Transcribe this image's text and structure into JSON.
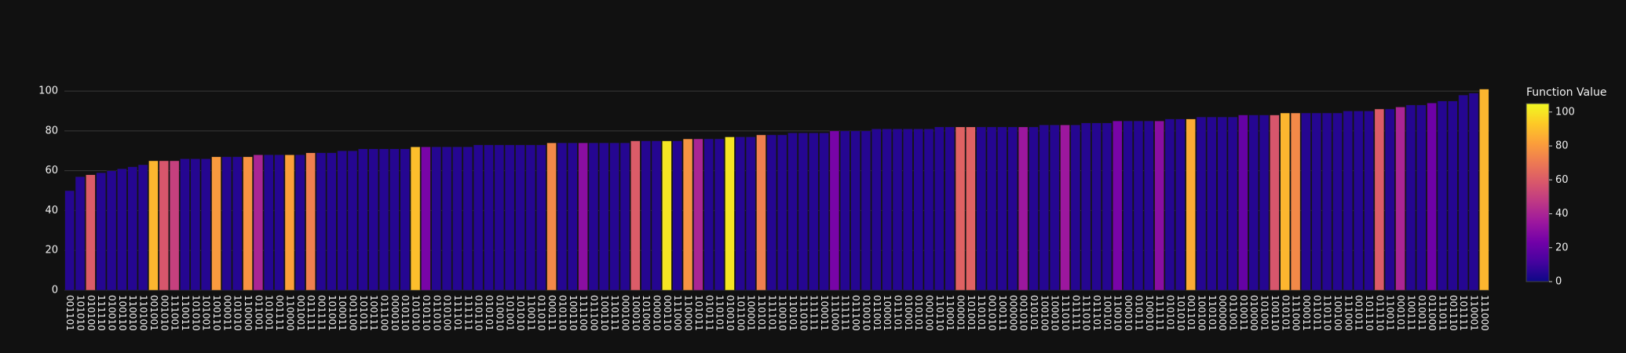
{
  "chart_data": {
    "type": "bar",
    "categories": [
      "001101",
      "101010",
      "010100",
      "111110",
      "010010",
      "100110",
      "110010",
      "110100",
      "001001",
      "001010",
      "111001",
      "110011",
      "101010",
      "101001",
      "100110",
      "000011",
      "101010",
      "110000",
      "011001",
      "101001",
      "001111",
      "110000",
      "001001",
      "011111",
      "001111",
      "101001",
      "100011",
      "001100",
      "101011",
      "100111",
      "011100",
      "000010",
      "010110",
      "101010",
      "010110",
      "011010",
      "010100",
      "111101",
      "111111",
      "010110",
      "010101",
      "010010",
      "101001",
      "101010",
      "110011",
      "011010",
      "000111",
      "010110",
      "100110",
      "111100",
      "011100",
      "100110",
      "110111",
      "000100",
      "100010",
      "101000",
      "000010",
      "000110",
      "111000",
      "110000",
      "101011",
      "010111",
      "110101",
      "010010",
      "101100",
      "100001",
      "110101",
      "111101",
      "110010",
      "110101",
      "111010",
      "111111",
      "100011",
      "111000",
      "111111",
      "011100",
      "010010",
      "011001",
      "100001",
      "011101",
      "010001",
      "010101",
      "000100",
      "110110",
      "110001",
      "000001",
      "101001",
      "110101",
      "001010",
      "100111",
      "000000",
      "001010",
      "010101",
      "100100",
      "100010",
      "111010",
      "011111",
      "111010",
      "011101",
      "100101",
      "110010",
      "000010",
      "010111",
      "100010",
      "111111",
      "010101",
      "101010",
      "001101",
      "100100",
      "110101",
      "000000",
      "011001",
      "010011",
      "010000",
      "101001",
      "100110",
      "010101",
      "111000",
      "000011",
      "011011",
      "110110",
      "100100",
      "111000",
      "001011",
      "101110",
      "011110",
      "110011",
      "000101",
      "100111",
      "010011",
      "011000",
      "111011",
      "001110",
      "101111",
      "110001",
      "111000"
    ],
    "values": [
      50,
      57,
      58,
      59,
      60,
      61,
      62,
      63,
      65,
      65,
      65,
      66,
      66,
      66,
      67,
      67,
      67,
      67,
      68,
      68,
      68,
      68,
      68,
      69,
      69,
      69,
      70,
      70,
      71,
      71,
      71,
      71,
      71,
      72,
      72,
      72,
      72,
      72,
      72,
      73,
      73,
      73,
      73,
      73,
      73,
      73,
      74,
      74,
      74,
      74,
      74,
      74,
      74,
      74,
      75,
      75,
      75,
      75,
      75,
      76,
      76,
      76,
      76,
      77,
      77,
      77,
      78,
      78,
      78,
      79,
      79,
      79,
      79,
      80,
      80,
      80,
      80,
      81,
      81,
      81,
      81,
      81,
      81,
      82,
      82,
      82,
      82,
      82,
      82,
      82,
      82,
      82,
      82,
      83,
      83,
      83,
      83,
      84,
      84,
      84,
      85,
      85,
      85,
      85,
      85,
      86,
      86,
      86,
      87,
      87,
      87,
      87,
      88,
      88,
      88,
      88,
      89,
      89,
      89,
      89,
      89,
      89,
      90,
      90,
      90,
      91,
      91,
      92,
      93,
      93,
      94,
      95,
      95,
      98,
      99,
      101
    ],
    "color_values": [
      5,
      5,
      60,
      5,
      5,
      5,
      5,
      5,
      88,
      58,
      50,
      5,
      5,
      5,
      80,
      5,
      5,
      78,
      40,
      5,
      5,
      82,
      5,
      72,
      5,
      5,
      5,
      5,
      5,
      5,
      5,
      5,
      5,
      90,
      25,
      5,
      5,
      5,
      5,
      5,
      5,
      5,
      5,
      5,
      5,
      5,
      75,
      5,
      5,
      30,
      5,
      5,
      5,
      5,
      60,
      5,
      5,
      100,
      5,
      78,
      40,
      5,
      5,
      100,
      5,
      5,
      72,
      5,
      5,
      5,
      5,
      5,
      5,
      25,
      5,
      5,
      5,
      5,
      5,
      5,
      5,
      5,
      5,
      5,
      5,
      62,
      62,
      5,
      5,
      5,
      5,
      35,
      5,
      5,
      5,
      35,
      5,
      5,
      5,
      5,
      25,
      5,
      5,
      5,
      30,
      5,
      5,
      85,
      5,
      5,
      5,
      5,
      20,
      5,
      5,
      58,
      88,
      75,
      5,
      5,
      5,
      5,
      5,
      5,
      5,
      60,
      5,
      40,
      5,
      5,
      22,
      5,
      5,
      5,
      5,
      88
    ],
    "colorscale": [
      "#0d0887",
      "#46039f",
      "#7201a8",
      "#9c179e",
      "#bd3786",
      "#d8576b",
      "#ed7953",
      "#fb9f3a",
      "#fdca26",
      "#f0f921"
    ],
    "colorbar_title": "Function Value",
    "clim": [
      0,
      105
    ],
    "colorbar_ticks": [
      0,
      20,
      40,
      60,
      80,
      100
    ],
    "ylim": [
      0,
      102
    ],
    "yticks": [
      0,
      20,
      40,
      60,
      80,
      100
    ],
    "grid": true
  }
}
